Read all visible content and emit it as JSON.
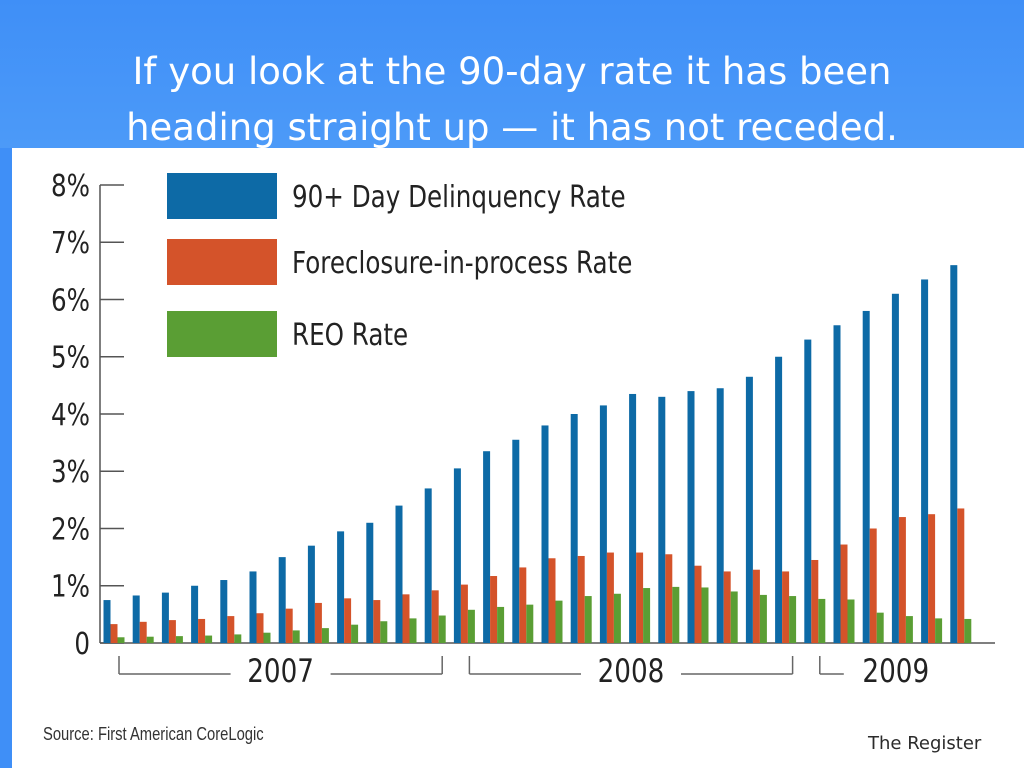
{
  "slide": {
    "title_line1": "If you look at the 90-day rate it has been",
    "title_line2": "heading straight up — it has not receded."
  },
  "footer": {
    "source": "Source: First American CoreLogic",
    "brand": "The Register"
  },
  "colors": {
    "banner": "#3f8ff7",
    "delinquency": "#0d6aa6",
    "foreclosure": "#d4532a",
    "reo": "#5a9e34"
  },
  "chart_data": {
    "type": "bar",
    "title": "",
    "xlabel": "",
    "ylabel": "",
    "ylim": [
      0,
      8
    ],
    "grid": false,
    "legend_position": "top-left",
    "y_ticks": [
      "0",
      "1%",
      "2%",
      "3%",
      "4%",
      "5%",
      "6%",
      "7%",
      "8%"
    ],
    "year_groups": [
      {
        "label": "2007",
        "start": 0,
        "end": 11
      },
      {
        "label": "2008",
        "start": 12,
        "end": 23
      },
      {
        "label": "2009",
        "start": 24,
        "end": 29
      }
    ],
    "series": [
      {
        "name": "90+ Day Delinquency Rate",
        "color": "#0d6aa6",
        "values": [
          0.75,
          0.83,
          0.88,
          1.0,
          1.1,
          1.25,
          1.5,
          1.7,
          1.95,
          2.1,
          2.4,
          2.7,
          3.05,
          3.35,
          3.55,
          3.8,
          4.0,
          4.15,
          4.35,
          4.3,
          4.4,
          4.45,
          4.65,
          5.0,
          5.3,
          5.55,
          5.8,
          6.1,
          6.35,
          6.6
        ]
      },
      {
        "name": "Foreclosure-in-process Rate",
        "color": "#d4532a",
        "values": [
          0.33,
          0.37,
          0.4,
          0.42,
          0.47,
          0.52,
          0.6,
          0.7,
          0.78,
          0.75,
          0.85,
          0.92,
          1.02,
          1.17,
          1.32,
          1.48,
          1.52,
          1.58,
          1.58,
          1.55,
          1.35,
          1.25,
          1.28,
          1.25,
          1.45,
          1.72,
          2.0,
          2.2,
          2.25,
          2.35
        ]
      },
      {
        "name": "REO Rate",
        "color": "#5a9e34",
        "values": [
          0.1,
          0.11,
          0.12,
          0.13,
          0.15,
          0.18,
          0.22,
          0.26,
          0.32,
          0.38,
          0.43,
          0.48,
          0.58,
          0.63,
          0.67,
          0.74,
          0.82,
          0.86,
          0.96,
          0.98,
          0.97,
          0.9,
          0.84,
          0.82,
          0.77,
          0.76,
          0.53,
          0.47,
          0.43,
          0.42
        ]
      }
    ]
  }
}
